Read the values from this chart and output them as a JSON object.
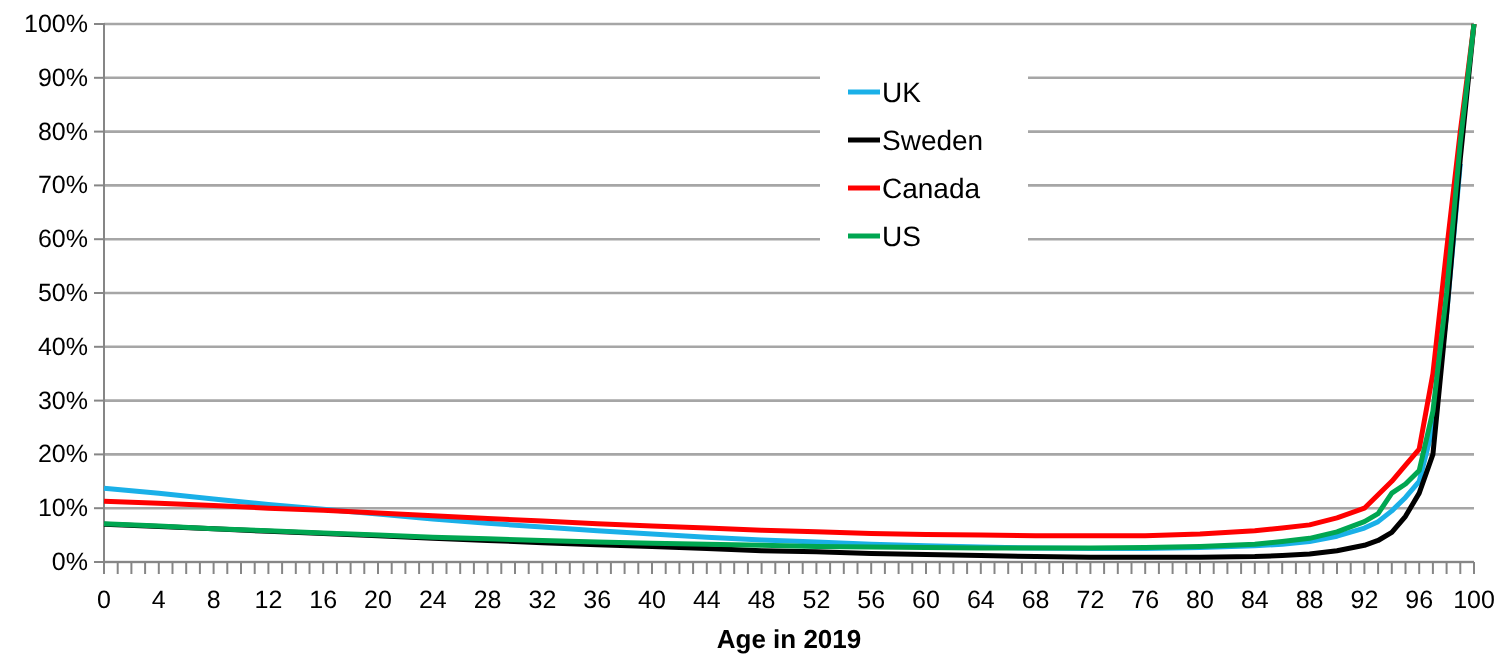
{
  "chart_data": {
    "type": "line",
    "xlabel": "Age in 2019",
    "grid": "y",
    "legend": "top",
    "line_style": "solid",
    "marker": "none",
    "x": [
      0,
      4,
      8,
      12,
      16,
      20,
      24,
      28,
      32,
      36,
      40,
      44,
      48,
      52,
      56,
      60,
      64,
      68,
      72,
      76,
      80,
      84,
      86,
      88,
      90,
      92,
      93,
      94,
      95,
      96,
      97,
      98,
      99,
      100
    ],
    "xlim": [
      0,
      100
    ],
    "xticks": [
      0,
      {
        "value": 1,
        "label": null
      },
      {
        "value": 2,
        "label": null
      },
      {
        "value": 3,
        "label": null
      },
      4,
      {
        "value": 5,
        "label": null
      },
      {
        "value": 6,
        "label": null
      },
      {
        "value": 7,
        "label": null
      },
      8,
      {
        "value": 9,
        "label": null
      },
      {
        "value": 10,
        "label": null
      },
      {
        "value": 11,
        "label": null
      },
      12,
      {
        "value": 13,
        "label": null
      },
      {
        "value": 14,
        "label": null
      },
      {
        "value": 15,
        "label": null
      },
      16,
      {
        "value": 17,
        "label": null
      },
      {
        "value": 18,
        "label": null
      },
      {
        "value": 19,
        "label": null
      },
      20,
      {
        "value": 21,
        "label": null
      },
      {
        "value": 22,
        "label": null
      },
      {
        "value": 23,
        "label": null
      },
      24,
      {
        "value": 25,
        "label": null
      },
      {
        "value": 26,
        "label": null
      },
      {
        "value": 27,
        "label": null
      },
      28,
      {
        "value": 29,
        "label": null
      },
      {
        "value": 30,
        "label": null
      },
      {
        "value": 31,
        "label": null
      },
      32,
      {
        "value": 33,
        "label": null
      },
      {
        "value": 34,
        "label": null
      },
      {
        "value": 35,
        "label": null
      },
      36,
      {
        "value": 37,
        "label": null
      },
      {
        "value": 38,
        "label": null
      },
      {
        "value": 39,
        "label": null
      },
      40,
      {
        "value": 41,
        "label": null
      },
      {
        "value": 42,
        "label": null
      },
      {
        "value": 43,
        "label": null
      },
      44,
      {
        "value": 45,
        "label": null
      },
      {
        "value": 46,
        "label": null
      },
      {
        "value": 47,
        "label": null
      },
      48,
      {
        "value": 49,
        "label": null
      },
      {
        "value": 50,
        "label": null
      },
      {
        "value": 51,
        "label": null
      },
      52,
      {
        "value": 53,
        "label": null
      },
      {
        "value": 54,
        "label": null
      },
      {
        "value": 55,
        "label": null
      },
      56,
      {
        "value": 57,
        "label": null
      },
      {
        "value": 58,
        "label": null
      },
      {
        "value": 59,
        "label": null
      },
      60,
      {
        "value": 61,
        "label": null
      },
      {
        "value": 62,
        "label": null
      },
      {
        "value": 63,
        "label": null
      },
      64,
      {
        "value": 65,
        "label": null
      },
      {
        "value": 66,
        "label": null
      },
      {
        "value": 67,
        "label": null
      },
      68,
      {
        "value": 69,
        "label": null
      },
      {
        "value": 70,
        "label": null
      },
      {
        "value": 71,
        "label": null
      },
      72,
      {
        "value": 73,
        "label": null
      },
      {
        "value": 74,
        "label": null
      },
      {
        "value": 75,
        "label": null
      },
      76,
      {
        "value": 77,
        "label": null
      },
      {
        "value": 78,
        "label": null
      },
      {
        "value": 79,
        "label": null
      },
      80,
      {
        "value": 81,
        "label": null
      },
      {
        "value": 82,
        "label": null
      },
      {
        "value": 83,
        "label": null
      },
      84,
      {
        "value": 85,
        "label": null
      },
      {
        "value": 86,
        "label": null
      },
      {
        "value": 87,
        "label": null
      },
      88,
      {
        "value": 89,
        "label": null
      },
      {
        "value": 90,
        "label": null
      },
      {
        "value": 91,
        "label": null
      },
      92,
      {
        "value": 93,
        "label": null
      },
      {
        "value": 94,
        "label": null
      },
      {
        "value": 95,
        "label": null
      },
      96,
      {
        "value": 97,
        "label": null
      },
      {
        "value": 98,
        "label": null
      },
      {
        "value": 99,
        "label": null
      },
      100
    ],
    "ylim": [
      0,
      100
    ],
    "yticks": [
      {
        "value": 0,
        "label": "0%"
      },
      {
        "value": 10,
        "label": "10%"
      },
      {
        "value": 20,
        "label": "20%"
      },
      {
        "value": 30,
        "label": "30%"
      },
      {
        "value": 40,
        "label": "40%"
      },
      {
        "value": 50,
        "label": "50%"
      },
      {
        "value": 60,
        "label": "60%"
      },
      {
        "value": 70,
        "label": "70%"
      },
      {
        "value": 80,
        "label": "80%"
      },
      {
        "value": 90,
        "label": "90%"
      },
      {
        "value": 100,
        "label": "100%"
      }
    ],
    "series": [
      {
        "name": "UK",
        "color": "#1ab0e8",
        "values": [
          13.7,
          12.8,
          11.7,
          10.7,
          9.8,
          8.9,
          8.0,
          7.2,
          6.5,
          5.8,
          5.2,
          4.6,
          4.1,
          3.7,
          3.3,
          3.0,
          2.8,
          2.6,
          2.5,
          2.5,
          2.7,
          3.0,
          3.3,
          3.8,
          4.8,
          6.3,
          7.5,
          9.5,
          12,
          15,
          25,
          46,
          74,
          null
        ]
      },
      {
        "name": "Sweden",
        "color": "#000000",
        "values": [
          7.0,
          6.6,
          6.2,
          5.7,
          5.3,
          4.9,
          4.4,
          4.0,
          3.6,
          3.2,
          2.9,
          2.5,
          2.1,
          1.9,
          1.6,
          1.4,
          1.2,
          1.0,
          0.9,
          0.9,
          0.9,
          1.0,
          1.2,
          1.5,
          2.1,
          3.1,
          4,
          5.5,
          8.5,
          12.8,
          20,
          46,
          75,
          100
        ]
      },
      {
        "name": "Canada",
        "color": "#ff0000",
        "values": [
          11.3,
          10.9,
          10.5,
          10.0,
          9.6,
          9.1,
          8.6,
          8.1,
          7.6,
          7.1,
          6.7,
          6.3,
          5.9,
          5.6,
          5.3,
          5.1,
          5.0,
          4.9,
          4.9,
          4.9,
          5.2,
          5.8,
          6.3,
          6.9,
          8.2,
          10,
          12.5,
          15,
          18,
          21,
          35,
          58,
          80,
          100
        ]
      },
      {
        "name": "US",
        "color": "#00a651",
        "values": [
          7.1,
          6.7,
          6.2,
          5.8,
          5.4,
          5.0,
          4.6,
          4.3,
          4.0,
          3.7,
          3.5,
          3.3,
          3.1,
          2.9,
          2.8,
          2.7,
          2.6,
          2.6,
          2.6,
          2.7,
          2.9,
          3.3,
          3.8,
          4.4,
          5.6,
          7.5,
          9,
          12.8,
          14.5,
          17,
          28,
          50,
          78,
          100
        ]
      }
    ]
  }
}
